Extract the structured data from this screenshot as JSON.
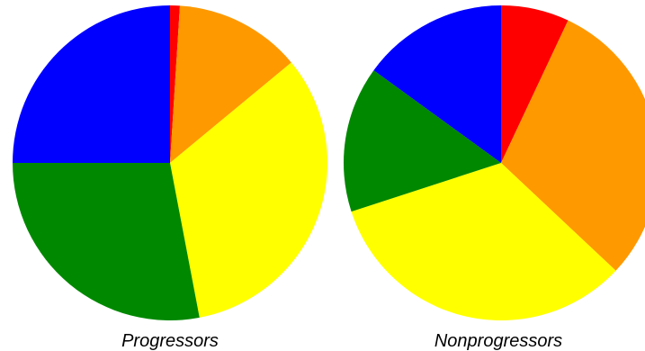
{
  "chart_data": [
    {
      "type": "pie",
      "title": "Progressors",
      "slices": [
        {
          "color": "#ff0000",
          "value": 1
        },
        {
          "color": "#ff9900",
          "value": 13
        },
        {
          "color": "#ffff00",
          "value": 33
        },
        {
          "color": "#008800",
          "value": 28
        },
        {
          "color": "#0000ff",
          "value": 25
        }
      ]
    },
    {
      "type": "pie",
      "title": "Nonprogressors",
      "slices": [
        {
          "color": "#ff0000",
          "value": 7
        },
        {
          "color": "#ff9900",
          "value": 30
        },
        {
          "color": "#ffff00",
          "value": 33
        },
        {
          "color": "#008800",
          "value": 15
        },
        {
          "color": "#0000ff",
          "value": 15
        }
      ]
    }
  ]
}
